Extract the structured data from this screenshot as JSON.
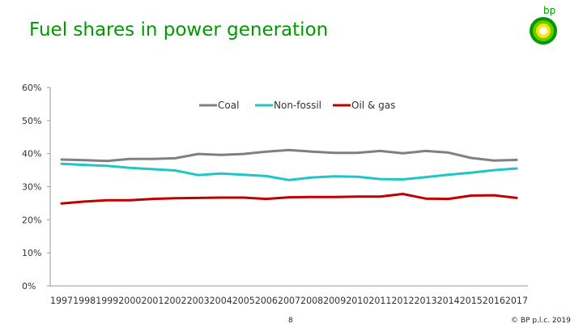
{
  "page": {
    "title": "Fuel shares in power generation",
    "page_number": "8",
    "copyright": "© BP p.l.c. 2019",
    "logo_text": "bp",
    "colors": {
      "title": "#009900",
      "coal": "#808080",
      "nonfossil": "#1EC6C6",
      "oilgas": "#C00000"
    }
  },
  "chart_data": {
    "type": "line",
    "title": "Fuel shares in power generation",
    "xlabel": "",
    "ylabel": "",
    "ylim": [
      0,
      60
    ],
    "yticks": [
      "0%",
      "10%",
      "20%",
      "30%",
      "40%",
      "50%",
      "60%"
    ],
    "x": [
      "1997",
      "1998",
      "1999",
      "2000",
      "2001",
      "2002",
      "2003",
      "2004",
      "2005",
      "2006",
      "2007",
      "2008",
      "2009",
      "2010",
      "2011",
      "2012",
      "2013",
      "2014",
      "2015",
      "2016",
      "2017"
    ],
    "legend_position": "top",
    "series": [
      {
        "name": "Coal",
        "color": "#808080",
        "values": [
          38.2,
          38.0,
          37.8,
          38.4,
          38.4,
          38.6,
          39.9,
          39.6,
          39.9,
          40.6,
          41.1,
          40.6,
          40.2,
          40.2,
          40.8,
          40.1,
          40.8,
          40.3,
          38.7,
          37.9,
          38.1
        ]
      },
      {
        "name": "Non-fossil",
        "color": "#1EC6C6",
        "values": [
          36.9,
          36.6,
          36.3,
          35.7,
          35.3,
          34.9,
          33.5,
          34.0,
          33.6,
          33.2,
          32.0,
          32.8,
          33.1,
          33.0,
          32.3,
          32.2,
          32.9,
          33.6,
          34.2,
          35.0,
          35.5
        ]
      },
      {
        "name": "Oil & gas",
        "color": "#C00000",
        "values": [
          24.9,
          25.5,
          25.9,
          25.9,
          26.3,
          26.5,
          26.6,
          26.7,
          26.7,
          26.3,
          26.8,
          26.9,
          26.9,
          27.0,
          27.0,
          27.8,
          26.4,
          26.3,
          27.3,
          27.4,
          26.6
        ]
      }
    ]
  }
}
